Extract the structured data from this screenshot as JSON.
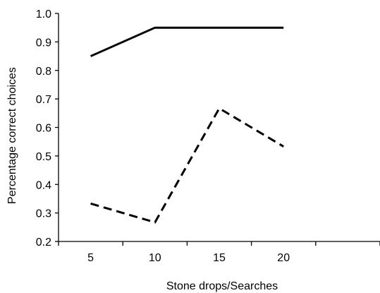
{
  "chart_data": {
    "type": "line",
    "title": "",
    "xlabel": "Stone drops/Searches",
    "ylabel": "Percentage correct choices",
    "x_ticks": [
      "5",
      "10",
      "15",
      "20"
    ],
    "y_ticks": [
      "0.2",
      "0.3",
      "0.4",
      "0.5",
      "0.6",
      "0.7",
      "0.8",
      "0.9",
      "1.0"
    ],
    "xlim": [
      0,
      25
    ],
    "ylim": [
      0.2,
      1.0
    ],
    "grid": false,
    "legend": "none",
    "series": [
      {
        "style": "solid",
        "color": "#000000",
        "x": [
          5,
          10,
          15,
          20
        ],
        "y": [
          0.85,
          0.95,
          0.95,
          0.95
        ]
      },
      {
        "style": "dashed",
        "color": "#000000",
        "x": [
          5,
          10,
          15,
          20
        ],
        "y": [
          0.333,
          0.267,
          0.667,
          0.533
        ]
      }
    ]
  }
}
